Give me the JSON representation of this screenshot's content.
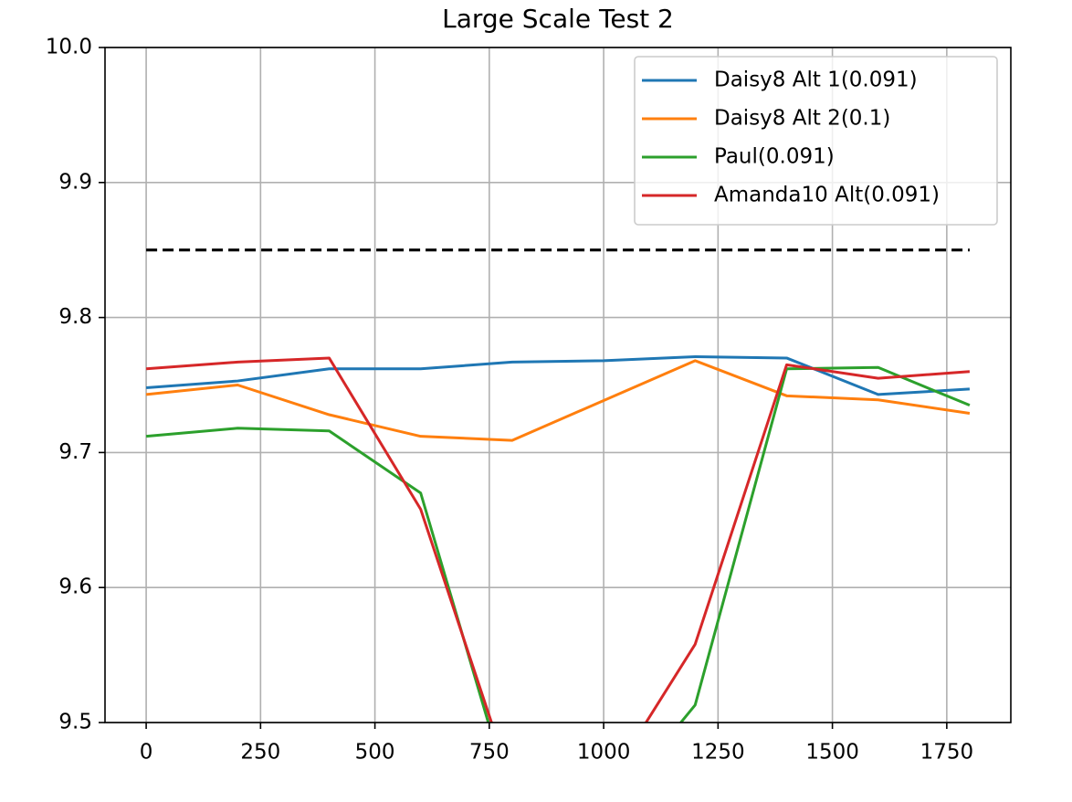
{
  "chart_data": {
    "type": "line",
    "title": "Large Scale Test 2",
    "x": [
      0,
      200,
      400,
      600,
      800,
      1000,
      1200,
      1400,
      1600,
      1800
    ],
    "series": [
      {
        "name": "Daisy8 Alt 1(0.091)",
        "color": "#1f77b4",
        "values": [
          9.748,
          9.753,
          9.762,
          9.762,
          9.767,
          9.768,
          9.771,
          9.77,
          9.743,
          9.747
        ]
      },
      {
        "name": "Daisy8 Alt 2(0.1)",
        "color": "#ff7f0e",
        "values": [
          9.743,
          9.75,
          9.728,
          9.712,
          9.709,
          9.7385,
          9.768,
          9.742,
          9.739,
          9.729
        ]
      },
      {
        "name": "Paul(0.091)",
        "color": "#2ca02c",
        "values": [
          9.712,
          9.718,
          9.716,
          9.67,
          9.44,
          9.43,
          9.513,
          9.762,
          9.763,
          9.735
        ]
      },
      {
        "name": "Amanda10 Alt(0.091)",
        "color": "#d62728",
        "values": [
          9.762,
          9.767,
          9.77,
          9.658,
          9.454,
          9.45,
          9.558,
          9.765,
          9.755,
          9.76
        ]
      }
    ],
    "reference_line": {
      "y": 9.85,
      "x": [
        0,
        1800
      ],
      "color": "#000000",
      "style": "dashed"
    },
    "xlim": [
      -90,
      1890
    ],
    "xticks": [
      0,
      250,
      500,
      750,
      1000,
      1250,
      1500,
      1750
    ],
    "ylim": [
      9.5,
      10.0
    ],
    "yticks": [
      9.5,
      9.6,
      9.7,
      9.8,
      9.9,
      {
        "value": 10.0,
        "label": "10.0"
      }
    ],
    "grid": true,
    "legend": "upper right"
  }
}
